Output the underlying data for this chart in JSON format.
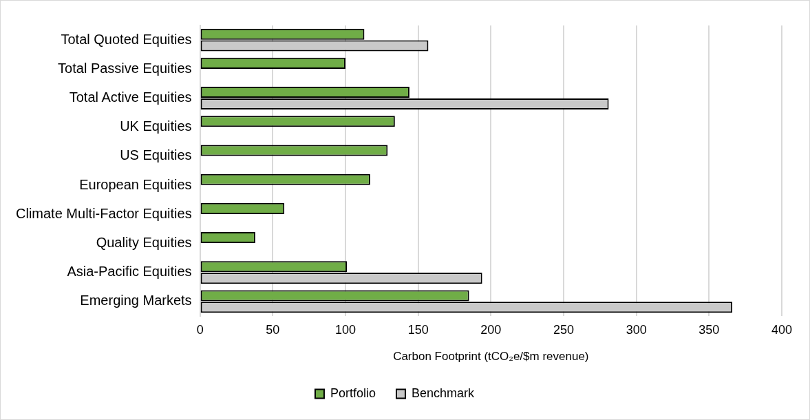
{
  "chart_data": {
    "type": "bar",
    "orientation": "horizontal",
    "xlabel": "Carbon Footprint (tCO₂e/$m revenue)",
    "categories": [
      "Total Quoted Equities",
      "Total Passive Equities",
      "Total Active Equities",
      "UK Equities",
      "US Equities",
      "European Equities",
      "Climate Multi-Factor Equities",
      "Quality Equities",
      "Asia-Pacific Equities",
      "Emerging Markets"
    ],
    "series": [
      {
        "name": "Portfolio",
        "color": "#70ad47",
        "values": [
          113,
          100,
          144,
          134,
          129,
          117,
          58,
          38,
          101,
          185
        ]
      },
      {
        "name": "Benchmark",
        "color": "#c9c9c9",
        "values": [
          157,
          null,
          281,
          null,
          null,
          null,
          null,
          null,
          194,
          366
        ]
      }
    ],
    "xlim": [
      0,
      400
    ],
    "xticks": [
      0,
      50,
      100,
      150,
      200,
      250,
      300,
      350,
      400
    ],
    "grid": "x",
    "legend": "bottom"
  }
}
